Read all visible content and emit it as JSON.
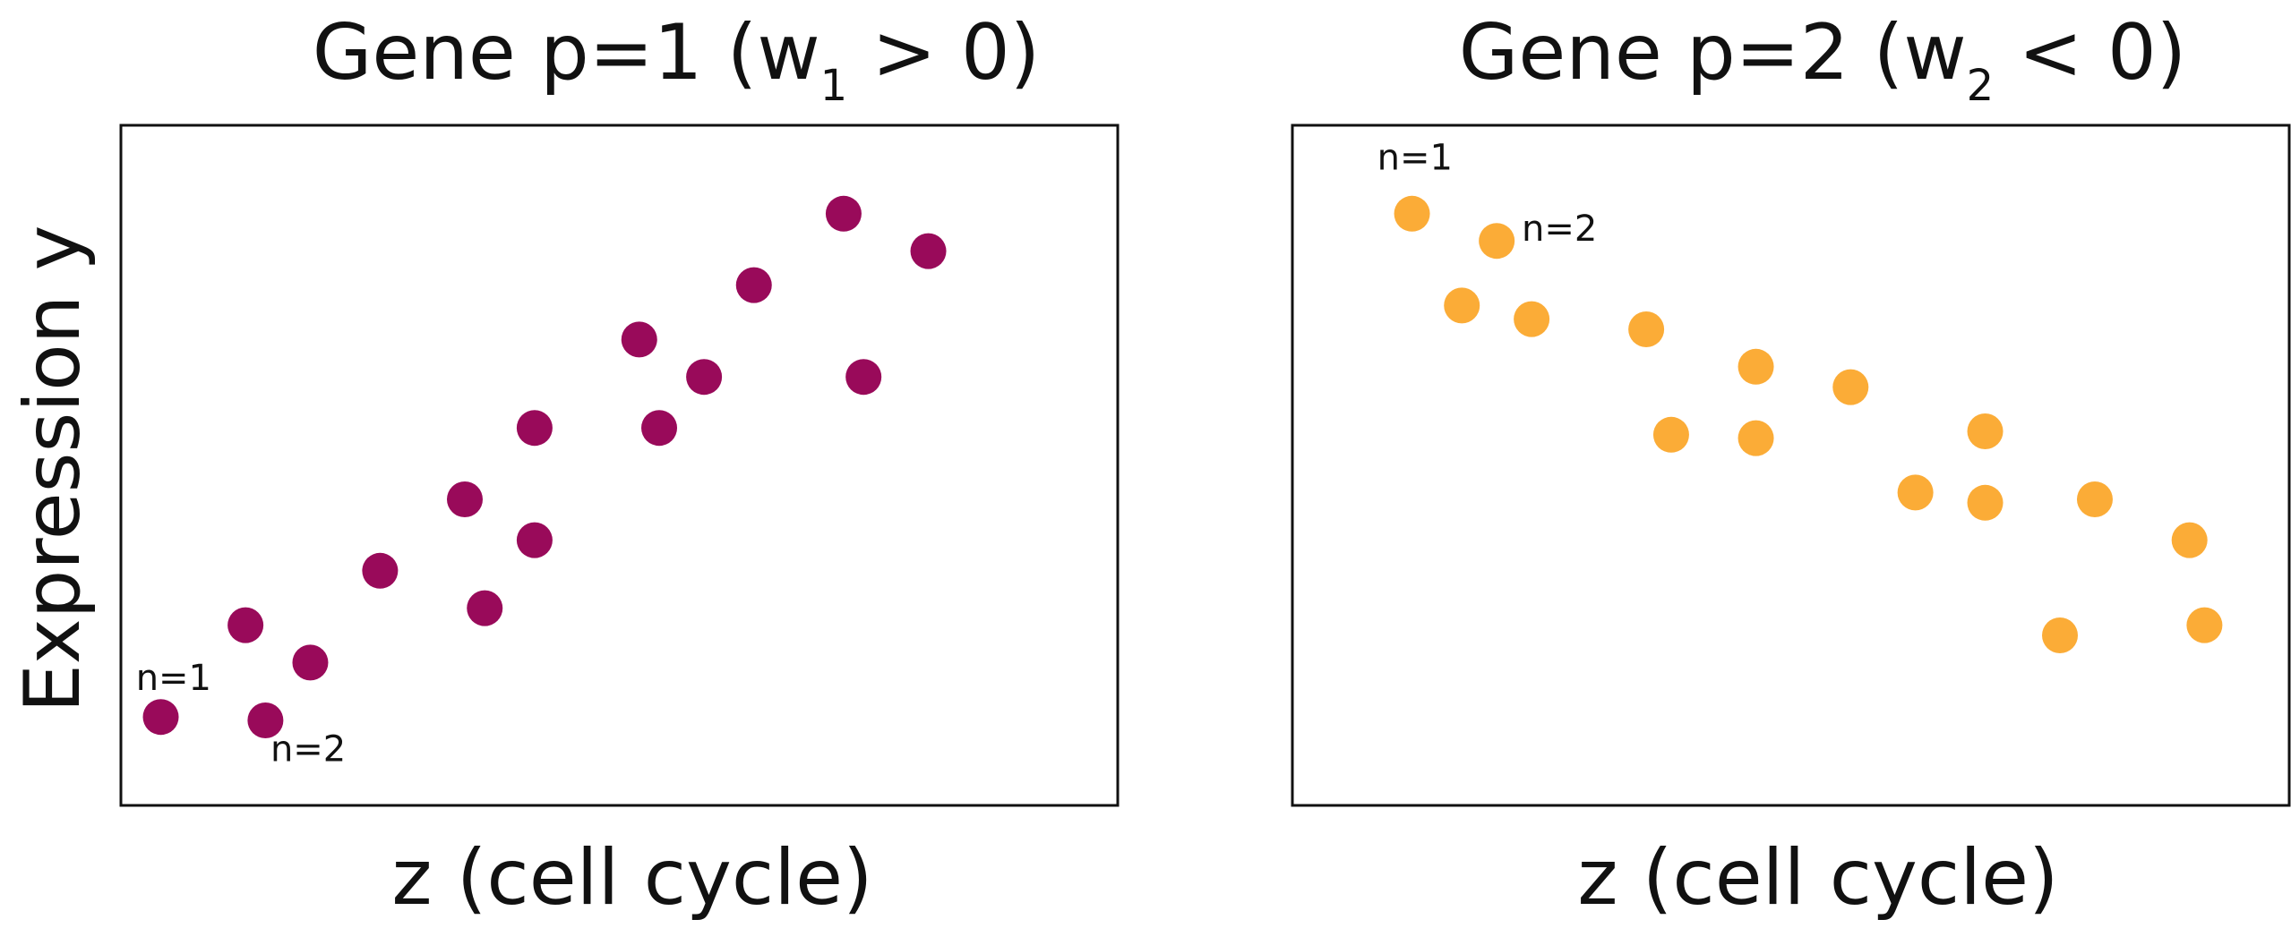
{
  "chart_data": [
    {
      "type": "scatter",
      "title": {
        "main": "Gene p=1 (w",
        "subscript": "1",
        "rest": " > 0)"
      },
      "xlabel": "z (cell cycle)",
      "ylabel": "Expression y",
      "xlim": [
        0,
        10
      ],
      "ylim": [
        0,
        10
      ],
      "grid": false,
      "ticks": false,
      "color": "#990a5a",
      "points": [
        {
          "x": 0.4,
          "y": 1.3
        },
        {
          "x": 1.45,
          "y": 1.25
        },
        {
          "x": 1.25,
          "y": 2.65
        },
        {
          "x": 1.9,
          "y": 2.1
        },
        {
          "x": 2.6,
          "y": 3.45
        },
        {
          "x": 3.45,
          "y": 4.5
        },
        {
          "x": 3.65,
          "y": 2.9
        },
        {
          "x": 4.15,
          "y": 3.9
        },
        {
          "x": 4.15,
          "y": 5.55
        },
        {
          "x": 5.2,
          "y": 6.85
        },
        {
          "x": 5.4,
          "y": 5.55
        },
        {
          "x": 5.85,
          "y": 6.3
        },
        {
          "x": 6.35,
          "y": 7.65
        },
        {
          "x": 7.25,
          "y": 8.7
        },
        {
          "x": 7.45,
          "y": 6.3
        },
        {
          "x": 8.1,
          "y": 8.15
        }
      ],
      "annotations": [
        {
          "text": "n=1",
          "x": 0.15,
          "y": 1.7
        },
        {
          "text": "n=2",
          "x": 1.5,
          "y": 0.65
        }
      ]
    },
    {
      "type": "scatter",
      "title": {
        "main": "Gene p=2 (w",
        "subscript": "2",
        "rest": " < 0)"
      },
      "xlabel": "z (cell cycle)",
      "ylabel": "",
      "xlim": [
        0,
        10
      ],
      "ylim": [
        0,
        10
      ],
      "grid": false,
      "ticks": false,
      "color": "#fbac37",
      "points": [
        {
          "x": 1.2,
          "y": 8.7
        },
        {
          "x": 2.05,
          "y": 8.3
        },
        {
          "x": 1.7,
          "y": 7.35
        },
        {
          "x": 2.4,
          "y": 7.15
        },
        {
          "x": 3.55,
          "y": 7.0
        },
        {
          "x": 4.65,
          "y": 6.45
        },
        {
          "x": 3.8,
          "y": 5.45
        },
        {
          "x": 4.65,
          "y": 5.4
        },
        {
          "x": 5.6,
          "y": 6.15
        },
        {
          "x": 6.25,
          "y": 4.6
        },
        {
          "x": 6.95,
          "y": 5.5
        },
        {
          "x": 6.95,
          "y": 4.45
        },
        {
          "x": 8.05,
          "y": 4.5
        },
        {
          "x": 7.7,
          "y": 2.5
        },
        {
          "x": 9.0,
          "y": 3.9
        },
        {
          "x": 9.15,
          "y": 2.65
        }
      ],
      "annotations": [
        {
          "text": "n=1",
          "x": 0.85,
          "y": 9.35
        },
        {
          "text": "n=2",
          "x": 2.3,
          "y": 8.3
        }
      ]
    }
  ]
}
